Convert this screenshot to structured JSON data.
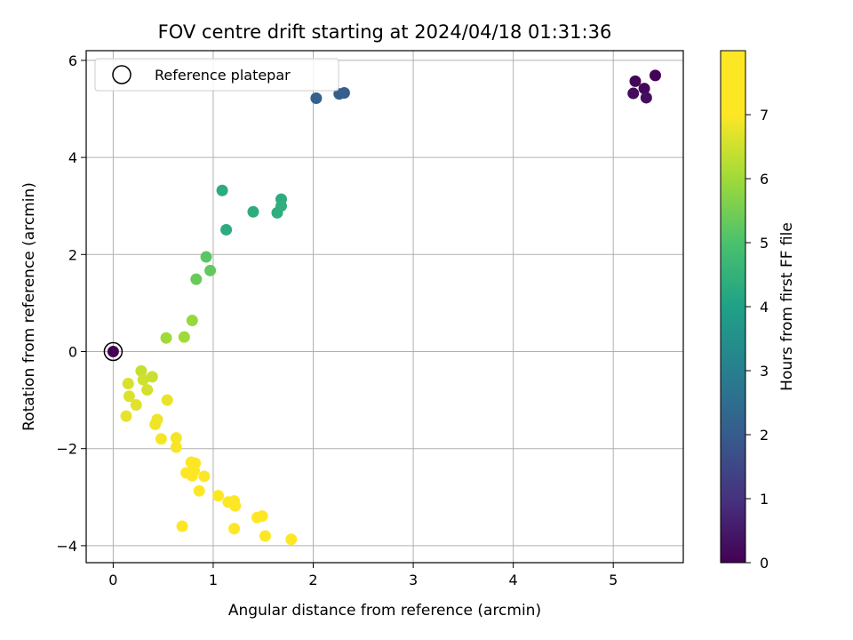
{
  "chart_data": {
    "type": "scatter",
    "title": "FOV centre drift starting at 2024/04/18 01:31:36",
    "xlabel": "Angular distance from reference (arcmin)",
    "ylabel": "Rotation from reference (arcmin)",
    "xlim": [
      -0.27,
      5.7
    ],
    "ylim": [
      -4.35,
      6.2
    ],
    "xticks": [
      0,
      1,
      2,
      3,
      4,
      5
    ],
    "yticks": [
      -4,
      -2,
      0,
      2,
      4,
      6
    ],
    "xtick_labels": [
      "0",
      "1",
      "2",
      "3",
      "4",
      "5"
    ],
    "ytick_labels": [
      "−4",
      "−2",
      "0",
      "2",
      "4",
      "6"
    ],
    "grid": true,
    "legend": {
      "position": "top-left",
      "entries": [
        "Reference platepar"
      ]
    },
    "colormap": "viridis",
    "colorbar": {
      "label": "Hours from first FF file",
      "range": [
        0,
        8.0
      ],
      "ticks": [
        0,
        1,
        2,
        3,
        4,
        5,
        6,
        7
      ],
      "tick_labels": [
        "0",
        "1",
        "2",
        "3",
        "4",
        "5",
        "6",
        "7"
      ]
    },
    "reference": {
      "label": "Reference platepar",
      "x": 0,
      "y": 0
    },
    "points": [
      {
        "x": 0.0,
        "y": 0.0,
        "t": 0.0
      },
      {
        "x": 5.42,
        "y": 5.69,
        "t": 0.05
      },
      {
        "x": 5.22,
        "y": 5.57,
        "t": 0.1
      },
      {
        "x": 5.31,
        "y": 5.42,
        "t": 0.15
      },
      {
        "x": 5.2,
        "y": 5.32,
        "t": 0.2
      },
      {
        "x": 5.33,
        "y": 5.23,
        "t": 0.25
      },
      {
        "x": 2.31,
        "y": 5.33,
        "t": 2.05
      },
      {
        "x": 2.26,
        "y": 5.31,
        "t": 2.1
      },
      {
        "x": 2.03,
        "y": 5.22,
        "t": 2.15
      },
      {
        "x": 1.09,
        "y": 3.32,
        "t": 4.3
      },
      {
        "x": 1.13,
        "y": 2.51,
        "t": 4.3
      },
      {
        "x": 1.4,
        "y": 2.88,
        "t": 4.35
      },
      {
        "x": 1.68,
        "y": 3.14,
        "t": 4.35
      },
      {
        "x": 1.68,
        "y": 3.0,
        "t": 4.4
      },
      {
        "x": 1.64,
        "y": 2.86,
        "t": 4.4
      },
      {
        "x": 0.93,
        "y": 1.95,
        "t": 5.2
      },
      {
        "x": 0.97,
        "y": 1.67,
        "t": 5.3
      },
      {
        "x": 0.83,
        "y": 1.49,
        "t": 5.35
      },
      {
        "x": 0.79,
        "y": 0.64,
        "t": 5.9
      },
      {
        "x": 0.71,
        "y": 0.3,
        "t": 6.0
      },
      {
        "x": 0.53,
        "y": 0.28,
        "t": 6.0
      },
      {
        "x": 0.28,
        "y": -0.4,
        "t": 6.4
      },
      {
        "x": 0.3,
        "y": -0.58,
        "t": 6.5
      },
      {
        "x": 0.39,
        "y": -0.52,
        "t": 6.45
      },
      {
        "x": 0.34,
        "y": -0.79,
        "t": 6.55
      },
      {
        "x": 0.15,
        "y": -0.66,
        "t": 6.6
      },
      {
        "x": 0.16,
        "y": -0.92,
        "t": 6.65
      },
      {
        "x": 0.23,
        "y": -1.1,
        "t": 6.7
      },
      {
        "x": 0.13,
        "y": -1.33,
        "t": 6.75
      },
      {
        "x": 0.54,
        "y": -1.0,
        "t": 6.8
      },
      {
        "x": 0.44,
        "y": -1.4,
        "t": 6.85
      },
      {
        "x": 0.42,
        "y": -1.5,
        "t": 6.85
      },
      {
        "x": 0.48,
        "y": -1.8,
        "t": 6.9
      },
      {
        "x": 0.63,
        "y": -1.78,
        "t": 6.9
      },
      {
        "x": 0.63,
        "y": -1.97,
        "t": 6.95
      },
      {
        "x": 0.78,
        "y": -2.28,
        "t": 7.0
      },
      {
        "x": 0.82,
        "y": -2.3,
        "t": 7.0
      },
      {
        "x": 0.73,
        "y": -2.5,
        "t": 7.05
      },
      {
        "x": 0.81,
        "y": -2.45,
        "t": 7.05
      },
      {
        "x": 0.79,
        "y": -2.56,
        "t": 7.1
      },
      {
        "x": 0.91,
        "y": -2.57,
        "t": 7.1
      },
      {
        "x": 0.86,
        "y": -2.87,
        "t": 7.15
      },
      {
        "x": 1.05,
        "y": -2.97,
        "t": 7.2
      },
      {
        "x": 1.15,
        "y": -3.1,
        "t": 7.3
      },
      {
        "x": 1.21,
        "y": -3.08,
        "t": 7.35
      },
      {
        "x": 1.22,
        "y": -3.18,
        "t": 7.45
      },
      {
        "x": 0.69,
        "y": -3.6,
        "t": 7.3
      },
      {
        "x": 1.21,
        "y": -3.65,
        "t": 7.6
      },
      {
        "x": 1.44,
        "y": -3.42,
        "t": 7.7
      },
      {
        "x": 1.49,
        "y": -3.39,
        "t": 7.75
      },
      {
        "x": 1.52,
        "y": -3.8,
        "t": 7.85
      },
      {
        "x": 1.78,
        "y": -3.87,
        "t": 7.95
      }
    ]
  }
}
